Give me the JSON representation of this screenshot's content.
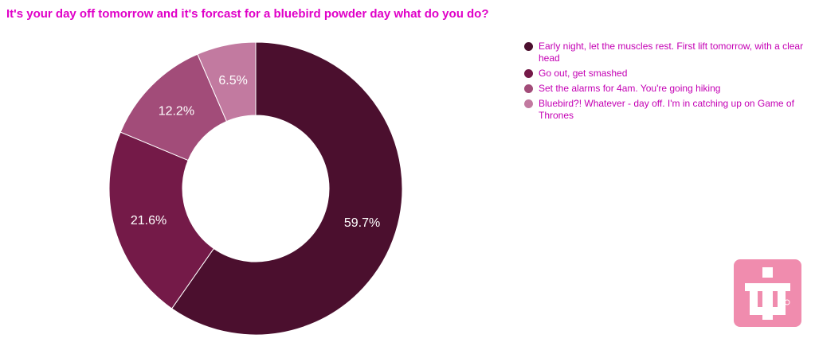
{
  "chart_data": {
    "type": "pie",
    "donut": true,
    "title": "It's your day off tomorrow and it's forcast for a bluebird powder day what do you do?",
    "categories": [
      "Early night, let the muscles rest. First lift tomorrow, with a clear head",
      "Go out, get smashed",
      "Set the alarms for 4am. You're going hiking",
      "Bluebird?! Whatever - day off. I'm in catching up on Game of Thrones"
    ],
    "values": [
      59.7,
      21.6,
      12.2,
      6.5
    ],
    "value_labels": [
      "59.7%",
      "21.6%",
      "12.2%",
      "6.5%"
    ],
    "colors": [
      "#4b0f2e",
      "#741a48",
      "#a24c79",
      "#c27aa0"
    ],
    "legend_position": "top-right",
    "title_color": "#e000c8",
    "legend_text_color": "#c400b4"
  },
  "logo": {
    "icon": "brand-logo-icon",
    "color": "#f08cae"
  }
}
